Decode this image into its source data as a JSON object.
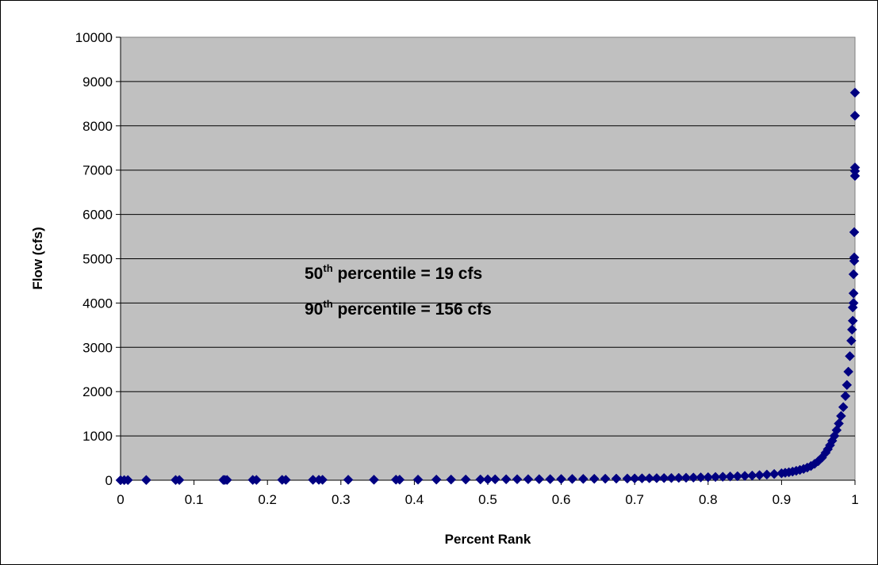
{
  "chart_data": {
    "type": "scatter",
    "title": "",
    "xlabel": "Percent Rank",
    "ylabel": "Flow (cfs)",
    "xlim": [
      0,
      1
    ],
    "ylim": [
      0,
      10000
    ],
    "x_ticks": [
      "0",
      "0.1",
      "0.2",
      "0.3",
      "0.4",
      "0.5",
      "0.6",
      "0.7",
      "0.8",
      "0.9",
      "1"
    ],
    "y_ticks": [
      "0",
      "1000",
      "2000",
      "3000",
      "4000",
      "5000",
      "6000",
      "7000",
      "8000",
      "9000",
      "10000"
    ],
    "grid": "horizontal",
    "plot_background": "#C0C0C0",
    "marker_color": "#000080",
    "marker_shape": "diamond",
    "annotations": [
      {
        "prefix": "50",
        "sup": "th",
        "suffix": " percentile = 19 cfs"
      },
      {
        "prefix": "90",
        "sup": "th",
        "suffix": " percentile = 156 cfs"
      }
    ],
    "series": [
      {
        "points": [
          [
            0.0,
            1
          ],
          [
            0.005,
            2
          ],
          [
            0.01,
            3
          ],
          [
            0.035,
            4
          ],
          [
            0.075,
            5
          ],
          [
            0.08,
            5
          ],
          [
            0.14,
            6
          ],
          [
            0.142,
            6
          ],
          [
            0.145,
            6
          ],
          [
            0.18,
            7
          ],
          [
            0.185,
            7
          ],
          [
            0.22,
            8
          ],
          [
            0.225,
            8
          ],
          [
            0.262,
            9
          ],
          [
            0.27,
            9
          ],
          [
            0.275,
            9
          ],
          [
            0.31,
            10
          ],
          [
            0.345,
            11
          ],
          [
            0.375,
            12
          ],
          [
            0.38,
            12
          ],
          [
            0.405,
            13
          ],
          [
            0.43,
            14
          ],
          [
            0.45,
            15
          ],
          [
            0.47,
            16
          ],
          [
            0.49,
            17
          ],
          [
            0.5,
            19
          ],
          [
            0.51,
            20
          ],
          [
            0.525,
            21
          ],
          [
            0.54,
            22
          ],
          [
            0.555,
            23
          ],
          [
            0.57,
            24
          ],
          [
            0.585,
            25
          ],
          [
            0.6,
            27
          ],
          [
            0.615,
            29
          ],
          [
            0.63,
            30
          ],
          [
            0.645,
            32
          ],
          [
            0.66,
            34
          ],
          [
            0.675,
            36
          ],
          [
            0.69,
            38
          ],
          [
            0.7,
            40
          ],
          [
            0.71,
            42
          ],
          [
            0.72,
            44
          ],
          [
            0.73,
            46
          ],
          [
            0.74,
            48
          ],
          [
            0.75,
            50
          ],
          [
            0.76,
            53
          ],
          [
            0.77,
            56
          ],
          [
            0.78,
            60
          ],
          [
            0.79,
            64
          ],
          [
            0.8,
            68
          ],
          [
            0.81,
            73
          ],
          [
            0.82,
            78
          ],
          [
            0.83,
            84
          ],
          [
            0.84,
            90
          ],
          [
            0.85,
            97
          ],
          [
            0.86,
            105
          ],
          [
            0.87,
            115
          ],
          [
            0.88,
            127
          ],
          [
            0.89,
            140
          ],
          [
            0.9,
            156
          ],
          [
            0.905,
            168
          ],
          [
            0.91,
            180
          ],
          [
            0.915,
            195
          ],
          [
            0.92,
            212
          ],
          [
            0.925,
            232
          ],
          [
            0.93,
            255
          ],
          [
            0.935,
            285
          ],
          [
            0.94,
            320
          ],
          [
            0.945,
            370
          ],
          [
            0.95,
            430
          ],
          [
            0.955,
            510
          ],
          [
            0.96,
            620
          ],
          [
            0.963,
            700
          ],
          [
            0.966,
            790
          ],
          [
            0.969,
            890
          ],
          [
            0.972,
            1000
          ],
          [
            0.975,
            1130
          ],
          [
            0.978,
            1280
          ],
          [
            0.981,
            1450
          ],
          [
            0.984,
            1650
          ],
          [
            0.987,
            1900
          ],
          [
            0.989,
            2150
          ],
          [
            0.991,
            2450
          ],
          [
            0.993,
            2800
          ],
          [
            0.995,
            3150
          ],
          [
            0.996,
            3400
          ],
          [
            0.997,
            3600
          ],
          [
            0.997,
            3900
          ],
          [
            0.998,
            4000
          ],
          [
            0.998,
            4220
          ],
          [
            0.998,
            4650
          ],
          [
            0.999,
            4950
          ],
          [
            0.999,
            5030
          ],
          [
            0.999,
            5600
          ],
          [
            1.0,
            6870
          ],
          [
            1.0,
            6980
          ],
          [
            1.0,
            7060
          ],
          [
            1.0,
            8230
          ],
          [
            1.0,
            8750
          ]
        ]
      }
    ]
  }
}
